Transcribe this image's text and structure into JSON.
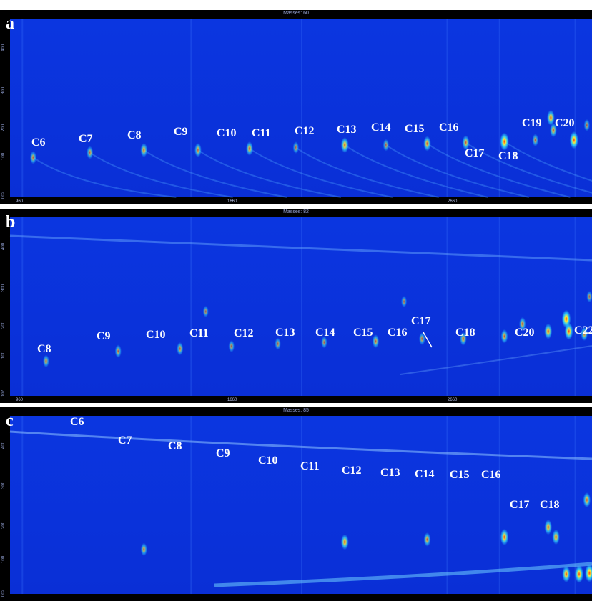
{
  "colors": {
    "background": "#0a2fd6",
    "peak_core": "#ff3b14",
    "peak_mid": "#ffee33",
    "peak_outer": "#33e0ff",
    "label": "#ffffff",
    "axis_strip": "#000000"
  },
  "chart_data": [
    {
      "type": "heatmap",
      "panel": "a",
      "title": "Masses: 60",
      "xlim": [
        960,
        3220
      ],
      "ylim": [
        1.0,
        4.6
      ],
      "x_ticks": [
        "960",
        "1660",
        "2660"
      ],
      "y_ticks": [
        "400",
        "300",
        "200",
        "100",
        "002"
      ],
      "labels": [
        "C6",
        "C7",
        "C8",
        "C9",
        "C10",
        "C11",
        "C12",
        "C13",
        "C14",
        "C15",
        "C16",
        "C17",
        "C18",
        "C19",
        "C20"
      ],
      "peaks": [
        {
          "x": 1050,
          "y": 1.8,
          "i": 0.5
        },
        {
          "x": 1270,
          "y": 1.9,
          "i": 0.5
        },
        {
          "x": 1480,
          "y": 1.95,
          "i": 0.6
        },
        {
          "x": 1690,
          "y": 1.95,
          "i": 0.6
        },
        {
          "x": 1890,
          "y": 1.98,
          "i": 0.6
        },
        {
          "x": 2070,
          "y": 2.0,
          "i": 0.4
        },
        {
          "x": 2260,
          "y": 2.05,
          "i": 0.75
        },
        {
          "x": 2420,
          "y": 2.05,
          "i": 0.4
        },
        {
          "x": 2580,
          "y": 2.08,
          "i": 0.7
        },
        {
          "x": 2730,
          "y": 2.1,
          "i": 0.65
        },
        {
          "x": 2880,
          "y": 2.12,
          "i": 1.0
        },
        {
          "x": 3000,
          "y": 2.15,
          "i": 0.45
        },
        {
          "x": 3060,
          "y": 2.6,
          "i": 0.75
        },
        {
          "x": 3070,
          "y": 2.35,
          "i": 0.6
        },
        {
          "x": 3150,
          "y": 2.15,
          "i": 0.95
        },
        {
          "x": 3200,
          "y": 2.45,
          "i": 0.4
        }
      ]
    },
    {
      "type": "heatmap",
      "panel": "b",
      "title": "Masses: 82",
      "xlim": [
        960,
        3220
      ],
      "ylim": [
        1.0,
        4.6
      ],
      "x_ticks": [
        "960",
        "1660",
        "2660"
      ],
      "y_ticks": [
        "400",
        "300",
        "200",
        "100",
        "002"
      ],
      "labels": [
        "C8",
        "C9",
        "C10",
        "C11",
        "C12",
        "C13",
        "C14",
        "C15",
        "C16",
        "C17",
        "C18",
        "C20",
        "C22"
      ],
      "peaks": [
        {
          "x": 1100,
          "y": 1.7,
          "i": 0.45
        },
        {
          "x": 1380,
          "y": 1.9,
          "i": 0.5
        },
        {
          "x": 1620,
          "y": 1.95,
          "i": 0.5
        },
        {
          "x": 1720,
          "y": 2.7,
          "i": 0.35
        },
        {
          "x": 1820,
          "y": 2.0,
          "i": 0.4
        },
        {
          "x": 2000,
          "y": 2.05,
          "i": 0.4
        },
        {
          "x": 2180,
          "y": 2.08,
          "i": 0.4
        },
        {
          "x": 2380,
          "y": 2.1,
          "i": 0.55
        },
        {
          "x": 2490,
          "y": 2.9,
          "i": 0.35
        },
        {
          "x": 2560,
          "y": 2.15,
          "i": 0.45
        },
        {
          "x": 2720,
          "y": 2.15,
          "i": 0.55
        },
        {
          "x": 2880,
          "y": 2.2,
          "i": 0.6
        },
        {
          "x": 2950,
          "y": 2.45,
          "i": 0.55
        },
        {
          "x": 3050,
          "y": 2.3,
          "i": 0.75
        },
        {
          "x": 3120,
          "y": 2.55,
          "i": 1.0
        },
        {
          "x": 3130,
          "y": 2.3,
          "i": 0.9
        },
        {
          "x": 3190,
          "y": 2.25,
          "i": 0.6
        },
        {
          "x": 3210,
          "y": 3.0,
          "i": 0.35
        }
      ]
    },
    {
      "type": "heatmap",
      "panel": "c",
      "title": "Masses: 85",
      "xlim": [
        960,
        3220
      ],
      "ylim": [
        1.0,
        4.6
      ],
      "x_ticks": [],
      "y_ticks": [
        "400",
        "300",
        "200",
        "100",
        "002"
      ],
      "labels": [
        "C6",
        "C7",
        "C8",
        "C9",
        "C10",
        "C11",
        "C12",
        "C13",
        "C14",
        "C15",
        "C16",
        "C17",
        "C18"
      ],
      "peaks": [
        {
          "x": 1480,
          "y": 1.9,
          "i": 0.5
        },
        {
          "x": 2260,
          "y": 2.05,
          "i": 0.75
        },
        {
          "x": 2580,
          "y": 2.1,
          "i": 0.6
        },
        {
          "x": 2880,
          "y": 2.15,
          "i": 0.85
        },
        {
          "x": 3050,
          "y": 2.35,
          "i": 0.7
        },
        {
          "x": 3080,
          "y": 2.15,
          "i": 0.7
        },
        {
          "x": 3120,
          "y": 1.4,
          "i": 0.85
        },
        {
          "x": 3170,
          "y": 1.4,
          "i": 0.95
        },
        {
          "x": 3200,
          "y": 2.9,
          "i": 0.7
        },
        {
          "x": 3210,
          "y": 1.42,
          "i": 1.0
        }
      ]
    }
  ]
}
